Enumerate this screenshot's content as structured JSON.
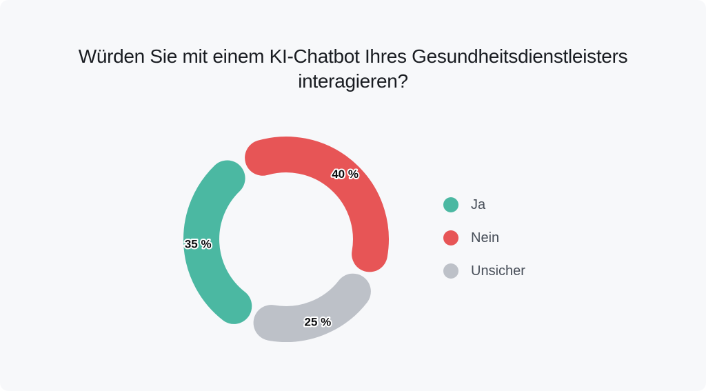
{
  "page": {
    "background_color": "#f7f8fa"
  },
  "title": {
    "full": "Würden Sie mit einem KI-Chatbot Ihres Gesundheitsdienstleisters interagieren?",
    "line1": "Würden Sie mit einem KI-Chatbot Ihres Gesundheitsdienstleisters",
    "line2": "interagieren?"
  },
  "chart_data": {
    "type": "pie",
    "variant": "donut-rounded-segments",
    "title": "Würden Sie mit einem KI-Chatbot Ihres Gesundheitsdienstleisters interagieren?",
    "unit": "%",
    "start_angle_deg": 204,
    "direction": "clockwise",
    "legend_position": "right",
    "categories": [
      "Ja",
      "Nein",
      "Unsicher"
    ],
    "values": [
      35,
      40,
      25
    ],
    "segments": [
      {
        "label": "Ja",
        "value": 35,
        "data_label": "35 %",
        "color": "#4bb8a2"
      },
      {
        "label": "Nein",
        "value": 40,
        "data_label": "40 %",
        "color": "#e75556"
      },
      {
        "label": "Unsicher",
        "value": 25,
        "data_label": "25 %",
        "color": "#bdc1c8"
      }
    ],
    "label_text_color": "#0c0d0f",
    "label_outline_color": "#ffffff"
  }
}
